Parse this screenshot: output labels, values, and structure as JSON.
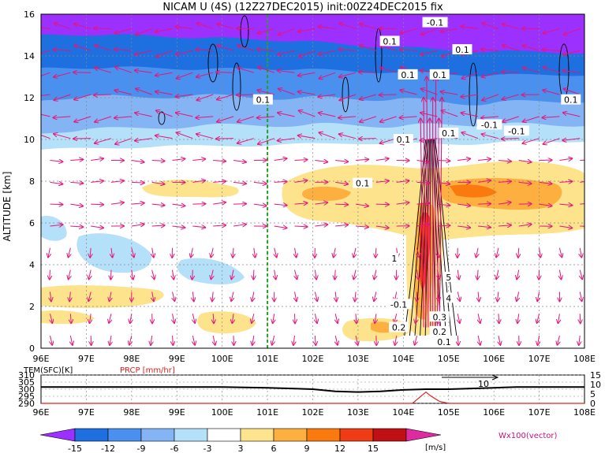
{
  "chart_data": {
    "type": "heatmap",
    "title": "NICAM U (4S) (12Z27DEC2015) init:00Z24DEC2015 fix",
    "ylabel": "ALTITUDE [km]",
    "xlim": [
      96,
      108
    ],
    "ylim": [
      0,
      16
    ],
    "x_ticks": [
      "96E",
      "97E",
      "98E",
      "99E",
      "100E",
      "101E",
      "102E",
      "103E",
      "104E",
      "105E",
      "106E",
      "107E",
      "108E"
    ],
    "y_ticks": [
      "0",
      "2",
      "4",
      "6",
      "8",
      "10",
      "12",
      "14",
      "16"
    ],
    "grid": true,
    "reference_line_lon": 101,
    "contour_labels": [
      {
        "text": "-0.1",
        "lon": 104.7,
        "alt": 15.6
      },
      {
        "text": "0.1",
        "lon": 103.7,
        "alt": 14.7
      },
      {
        "text": "0.1",
        "lon": 105.3,
        "alt": 14.3
      },
      {
        "text": "0.1",
        "lon": 104.1,
        "alt": 13.1
      },
      {
        "text": "0.1",
        "lon": 104.8,
        "alt": 13.1
      },
      {
        "text": "0.1",
        "lon": 100.9,
        "alt": 11.9
      },
      {
        "text": "0.1",
        "lon": 107.7,
        "alt": 11.9
      },
      {
        "text": "-0.1",
        "lon": 105.9,
        "alt": 10.7
      },
      {
        "text": "-0.1",
        "lon": 106.5,
        "alt": 10.4
      },
      {
        "text": "0.1",
        "lon": 104.0,
        "alt": 10.0
      },
      {
        "text": "0.1",
        "lon": 105.0,
        "alt": 10.3
      },
      {
        "text": "0.1",
        "lon": 103.1,
        "alt": 7.9
      },
      {
        "text": "1",
        "lon": 103.8,
        "alt": 4.3
      },
      {
        "text": "5",
        "lon": 105.0,
        "alt": 3.4
      },
      {
        "text": "4",
        "lon": 105.0,
        "alt": 2.4
      },
      {
        "text": "-0.1",
        "lon": 103.9,
        "alt": 2.1
      },
      {
        "text": "0.2",
        "lon": 103.9,
        "alt": 1.0
      },
      {
        "text": "0.3",
        "lon": 104.8,
        "alt": 1.5
      },
      {
        "text": "0.2",
        "lon": 104.8,
        "alt": 0.8
      },
      {
        "text": "0.1",
        "lon": 104.9,
        "alt": 0.3
      }
    ],
    "colorbar": {
      "levels": [
        -15,
        -12,
        -9,
        -6,
        -3,
        3,
        6,
        9,
        12,
        15
      ],
      "labels": [
        "-15",
        "-12",
        "-9",
        "-6",
        "-3",
        "3",
        "6",
        "9",
        "12",
        "15"
      ],
      "colors": [
        "#9b30ff",
        "#1e6fe0",
        "#4a90ee",
        "#84b4f4",
        "#b4e0fa",
        "#ffffff",
        "#fde38c",
        "#fdb040",
        "#fb7a10",
        "#f03c14",
        "#c01016",
        "#e02aa0"
      ],
      "unit": "[m/s]",
      "vector_label": "Wx100(vector)"
    },
    "lower_panel": {
      "left_label": "TEM(SFC)[K]",
      "right_label": "PRCP [mm/hr]",
      "left_ticks": [
        "310",
        "305",
        "300",
        "295",
        "290"
      ],
      "left_range": [
        290,
        310
      ],
      "right_ticks": [
        "15",
        "10",
        "5",
        "0"
      ],
      "right_range": [
        0,
        15
      ],
      "annotation": "10",
      "tem": {
        "lon": [
          96,
          100,
          101,
          102,
          102.5,
          103,
          103.5,
          104,
          104.5,
          105,
          105.5,
          106,
          106.5,
          107,
          108
        ],
        "value": [
          301.5,
          301.5,
          301,
          300,
          298.5,
          298,
          298.5,
          299.5,
          300,
          300,
          300.5,
          301,
          301.5,
          301.5,
          301.5
        ]
      },
      "prcp": {
        "lon": [
          96,
          104.2,
          104.4,
          104.5,
          104.6,
          104.8,
          105,
          108
        ],
        "value": [
          0,
          0,
          4,
          6,
          4,
          1,
          0,
          0
        ]
      }
    }
  }
}
